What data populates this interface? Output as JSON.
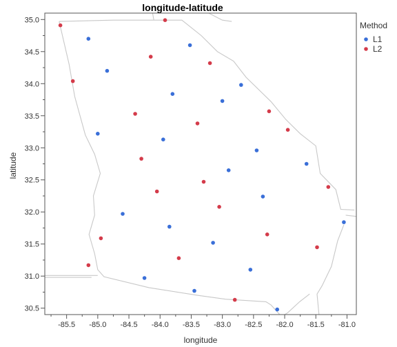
{
  "chart_data": {
    "type": "scatter",
    "title": "longitude-latitude",
    "xlabel": "longitude",
    "ylabel": "latitude",
    "xlim": [
      -85.85,
      -80.85
    ],
    "ylim": [
      30.4,
      35.1
    ],
    "x_ticks": [
      -85.5,
      -85.0,
      -84.5,
      -84.0,
      -83.5,
      -83.0,
      -82.5,
      -82.0,
      -81.5,
      -81.0
    ],
    "y_ticks": [
      30.5,
      31.0,
      31.5,
      32.0,
      32.5,
      33.0,
      33.5,
      34.0,
      34.5,
      35.0
    ],
    "x_tick_labels": [
      "-85.5",
      "-85.0",
      "-84.5",
      "-84.0",
      "-83.5",
      "-83.0",
      "-82.5",
      "-82.0",
      "-81.5",
      "-81.0"
    ],
    "y_tick_labels": [
      "30.5",
      "31.0",
      "31.5",
      "32.0",
      "32.5",
      "33.0",
      "33.5",
      "34.0",
      "34.5",
      "35.0"
    ],
    "grid": false,
    "legend": {
      "title": "Method",
      "position": "top-right"
    },
    "series": [
      {
        "name": "L1",
        "color": "#3a6fd8",
        "points": [
          [
            -85.15,
            34.7
          ],
          [
            -84.85,
            34.2
          ],
          [
            -83.52,
            34.6
          ],
          [
            -83.8,
            33.84
          ],
          [
            -82.7,
            33.98
          ],
          [
            -83.0,
            33.73
          ],
          [
            -85.0,
            33.22
          ],
          [
            -83.95,
            33.13
          ],
          [
            -82.45,
            32.96
          ],
          [
            -81.65,
            32.75
          ],
          [
            -82.9,
            32.65
          ],
          [
            -82.35,
            32.24
          ],
          [
            -84.6,
            31.97
          ],
          [
            -81.05,
            31.84
          ],
          [
            -83.85,
            31.77
          ],
          [
            -83.15,
            31.52
          ],
          [
            -82.55,
            31.1
          ],
          [
            -84.25,
            30.97
          ],
          [
            -83.45,
            30.77
          ],
          [
            -82.12,
            30.48
          ]
        ]
      },
      {
        "name": "L2",
        "color": "#d43b4a",
        "points": [
          [
            -85.6,
            34.91
          ],
          [
            -83.92,
            34.99
          ],
          [
            -84.15,
            34.42
          ],
          [
            -83.2,
            34.32
          ],
          [
            -85.4,
            34.04
          ],
          [
            -84.4,
            33.53
          ],
          [
            -83.4,
            33.38
          ],
          [
            -82.25,
            33.57
          ],
          [
            -81.95,
            33.28
          ],
          [
            -84.3,
            32.83
          ],
          [
            -83.3,
            32.47
          ],
          [
            -84.05,
            32.32
          ],
          [
            -81.3,
            32.39
          ],
          [
            -83.05,
            32.08
          ],
          [
            -84.95,
            31.59
          ],
          [
            -82.28,
            31.65
          ],
          [
            -81.48,
            31.45
          ],
          [
            -83.7,
            31.28
          ],
          [
            -85.15,
            31.17
          ],
          [
            -82.8,
            30.63
          ]
        ]
      }
    ]
  }
}
